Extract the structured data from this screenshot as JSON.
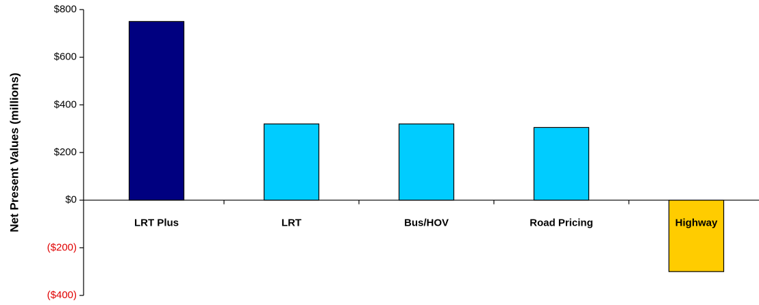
{
  "chart_data": {
    "type": "bar",
    "y_axis_label": "Net Present Values (millions)",
    "categories": [
      "LRT Plus",
      "LRT",
      "Bus/HOV",
      "Road Pricing",
      "Highway"
    ],
    "values": [
      750,
      320,
      320,
      305,
      -300
    ],
    "colors": [
      "#000080",
      "#00ccff",
      "#00ccff",
      "#00ccff",
      "#ffcc00"
    ],
    "ylim": [
      -400,
      800
    ],
    "yticks": [
      {
        "value": -400,
        "label": "($400)"
      },
      {
        "value": -200,
        "label": "($200)"
      },
      {
        "value": 0,
        "label": "$0"
      },
      {
        "value": 200,
        "label": "$200"
      },
      {
        "value": 400,
        "label": "$400"
      },
      {
        "value": 600,
        "label": "$600"
      },
      {
        "value": 800,
        "label": "$800"
      }
    ],
    "negative_tick_color": "#e00000",
    "grid": false
  }
}
